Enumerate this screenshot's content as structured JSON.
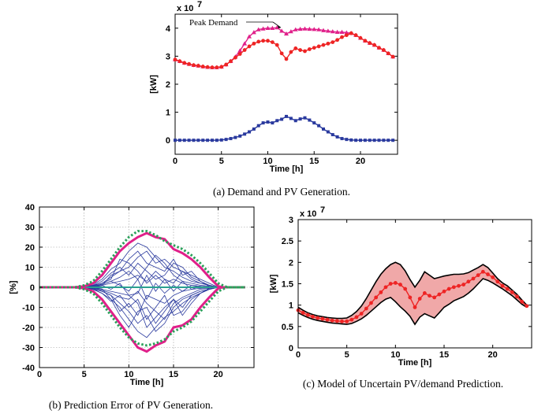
{
  "captions": {
    "a": "(a) Demand and PV Generation.",
    "b": "(b) Prediction Error of PV Generation.",
    "c": "(c) Model of Uncertain PV/demand Prediction."
  },
  "chart_data": [
    {
      "id": "a",
      "type": "line",
      "title": "",
      "xlabel": "Time [h]",
      "ylabel": "[kW]",
      "scale_label": "x 10",
      "scale_exp": "7",
      "xlim": [
        0,
        24
      ],
      "ylim": [
        -0.5,
        4.5
      ],
      "xticks": [
        0,
        5,
        10,
        15,
        20
      ],
      "yticks": [
        0,
        1,
        2,
        3,
        4
      ],
      "grid": false,
      "annotation": {
        "text": "Peak Demand",
        "x": 11.4,
        "y": 4.02
      },
      "x": [
        0,
        0.5,
        1,
        1.5,
        2,
        2.5,
        3,
        3.5,
        4,
        4.5,
        5,
        5.5,
        6,
        6.5,
        7,
        7.5,
        8,
        8.5,
        9,
        9.5,
        10,
        10.5,
        11,
        11.5,
        12,
        12.5,
        13,
        13.5,
        14,
        14.5,
        15,
        15.5,
        16,
        16.5,
        17,
        17.5,
        18,
        18.5,
        19,
        19.5,
        20,
        20.5,
        21,
        21.5,
        22,
        22.5,
        23,
        23.5
      ],
      "series": [
        {
          "color": "#e0208a",
          "marker": "triangle",
          "values": [
            2.88,
            2.82,
            2.76,
            2.72,
            2.68,
            2.66,
            2.63,
            2.61,
            2.6,
            2.6,
            2.62,
            2.7,
            2.82,
            2.98,
            3.2,
            3.45,
            3.7,
            3.85,
            3.95,
            3.98,
            4.0,
            4.0,
            4.02,
            3.9,
            3.8,
            3.88,
            3.95,
            3.97,
            3.98,
            3.97,
            3.96,
            3.95,
            3.92,
            3.9,
            3.88,
            3.86,
            3.86,
            3.84,
            3.82,
            3.75,
            3.65,
            3.55,
            3.47,
            3.4,
            3.3,
            3.22,
            3.1,
            2.98
          ]
        },
        {
          "color": "#ee2424",
          "marker": "circle",
          "values": [
            2.88,
            2.82,
            2.76,
            2.72,
            2.68,
            2.66,
            2.63,
            2.61,
            2.6,
            2.6,
            2.62,
            2.7,
            2.82,
            2.95,
            3.08,
            3.22,
            3.35,
            3.45,
            3.52,
            3.55,
            3.55,
            3.5,
            3.4,
            3.1,
            2.9,
            3.15,
            3.28,
            3.22,
            3.18,
            3.25,
            3.3,
            3.35,
            3.4,
            3.45,
            3.5,
            3.58,
            3.68,
            3.75,
            3.82,
            3.75,
            3.65,
            3.55,
            3.47,
            3.4,
            3.3,
            3.22,
            3.1,
            2.98
          ]
        },
        {
          "color": "#2a3a9e",
          "marker": "square",
          "values": [
            0,
            0,
            0,
            0,
            0,
            0,
            0,
            0,
            0,
            0,
            0.01,
            0.03,
            0.06,
            0.1,
            0.15,
            0.22,
            0.3,
            0.4,
            0.52,
            0.62,
            0.65,
            0.62,
            0.7,
            0.75,
            0.85,
            0.78,
            0.7,
            0.76,
            0.8,
            0.72,
            0.62,
            0.52,
            0.4,
            0.3,
            0.2,
            0.12,
            0.06,
            0.03,
            0.01,
            0,
            0,
            0,
            0,
            0,
            0,
            0,
            0,
            0
          ]
        }
      ]
    },
    {
      "id": "b",
      "type": "line",
      "title": "",
      "xlabel": "Time [h]",
      "ylabel": "[%]",
      "xlim": [
        0,
        24
      ],
      "ylim": [
        -40,
        40
      ],
      "xticks": [
        0,
        5,
        10,
        15,
        20
      ],
      "yticks": [
        -40,
        -30,
        -20,
        -10,
        0,
        10,
        20,
        30,
        40
      ],
      "grid": true,
      "envelope_upper": {
        "color": "#e0208a",
        "x": [
          0,
          4,
          5,
          6,
          7,
          8,
          9,
          10,
          11,
          12,
          13,
          14,
          15,
          16,
          17,
          18,
          19,
          20,
          20.5,
          23
        ],
        "values": [
          0,
          0,
          0.5,
          2,
          6,
          12,
          18,
          22,
          25,
          27,
          25,
          24,
          19,
          17,
          14,
          10,
          5,
          0.5,
          0,
          0
        ]
      },
      "envelope_lower": {
        "color": "#e0208a",
        "x": [
          0,
          4,
          5,
          6,
          7,
          8,
          9,
          10,
          11,
          12,
          13,
          14,
          15,
          16,
          17,
          18,
          19,
          20,
          20.5,
          23
        ],
        "values": [
          0,
          0,
          -0.5,
          -2,
          -6,
          -12,
          -18,
          -24,
          -30,
          -32,
          -29,
          -27,
          -20,
          -19,
          -16,
          -10,
          -5,
          -0.5,
          0,
          0
        ]
      },
      "bound_upper": {
        "color": "#2aa05a",
        "x": [
          0,
          4,
          5,
          6,
          7,
          8,
          9,
          10,
          11,
          12,
          13,
          14,
          15,
          16,
          17,
          18,
          19,
          20,
          21,
          23
        ],
        "values": [
          0,
          0,
          1,
          3,
          8,
          14,
          20,
          25,
          28,
          28,
          26,
          23,
          21,
          19,
          16,
          12,
          7,
          2,
          0,
          0
        ]
      },
      "bound_lower": {
        "color": "#2aa05a",
        "x": [
          0,
          4,
          5,
          6,
          7,
          8,
          9,
          10,
          11,
          12,
          13,
          14,
          15,
          16,
          17,
          18,
          19,
          20,
          21,
          23
        ],
        "values": [
          0,
          0,
          -1,
          -3,
          -8,
          -14,
          -20,
          -25,
          -28,
          -29,
          -28,
          -26,
          -22,
          -20,
          -17,
          -12,
          -7,
          -2,
          0,
          0
        ]
      },
      "error_curves": {
        "color": "#2a3a9e",
        "x": [
          0,
          4,
          5,
          6,
          7,
          8,
          9,
          10,
          11,
          12,
          13,
          14,
          15,
          16,
          17,
          18,
          19,
          20,
          21,
          23
        ],
        "curves": [
          [
            0,
            0,
            0.3,
            1.5,
            4,
            9,
            12,
            18,
            22,
            20,
            15,
            10,
            8,
            5,
            3,
            2,
            1,
            0,
            0,
            0
          ],
          [
            0,
            0,
            -0.3,
            -1,
            -3,
            -6,
            -10,
            -16,
            -22,
            -25,
            -20,
            -15,
            -12,
            -8,
            -5,
            -3,
            -1,
            0,
            0,
            0
          ],
          [
            0,
            0,
            0.2,
            1,
            2,
            5,
            8,
            10,
            15,
            18,
            12,
            14,
            10,
            8,
            6,
            4,
            2,
            0,
            0,
            0
          ],
          [
            0,
            0,
            -0.2,
            -1,
            -2,
            -4,
            -8,
            -12,
            -18,
            -14,
            -22,
            -18,
            -10,
            -6,
            -4,
            -2,
            -1,
            0,
            0,
            0
          ],
          [
            0,
            0,
            0.1,
            0.5,
            1.5,
            3,
            5,
            8,
            4,
            10,
            16,
            12,
            6,
            3,
            2,
            1,
            0.5,
            0,
            0,
            0
          ],
          [
            0,
            0,
            -0.1,
            -0.5,
            -1.5,
            -3,
            -5,
            -6,
            -2,
            -8,
            -12,
            -16,
            -8,
            -5,
            -3,
            -1,
            -0.5,
            0,
            0,
            0
          ],
          [
            0,
            0,
            0.3,
            1,
            3,
            7,
            10,
            6,
            12,
            8,
            4,
            6,
            12,
            10,
            5,
            3,
            1,
            0,
            0,
            0
          ],
          [
            0,
            0,
            -0.3,
            -1,
            -3,
            -7,
            -4,
            -10,
            -6,
            -16,
            -10,
            -4,
            -14,
            -12,
            -6,
            -3,
            -1,
            0,
            0,
            0
          ],
          [
            0,
            0,
            0.2,
            0.8,
            2,
            4,
            14,
            12,
            8,
            2,
            6,
            2,
            4,
            2,
            1,
            0.5,
            0.2,
            0,
            0,
            0
          ],
          [
            0,
            0,
            -0.2,
            -0.8,
            -2,
            -4,
            -12,
            -8,
            -14,
            -4,
            -6,
            -8,
            -4,
            -2,
            -1,
            -0.5,
            -0.2,
            0,
            0,
            0
          ],
          [
            0,
            0,
            0.1,
            0.4,
            1,
            2,
            3,
            4,
            6,
            3,
            8,
            4,
            2,
            8,
            4,
            2,
            1,
            0,
            0,
            0
          ],
          [
            0,
            0,
            -0.1,
            -0.4,
            -1,
            -2,
            -3,
            -4,
            -8,
            -20,
            -15,
            -10,
            -6,
            -10,
            -4,
            -2,
            -1,
            0,
            0,
            0
          ],
          [
            0,
            0,
            0,
            0.2,
            0.8,
            6,
            8,
            14,
            18,
            12,
            10,
            8,
            14,
            6,
            8,
            3,
            0.5,
            0,
            0,
            0
          ],
          [
            0,
            0,
            0,
            -0.2,
            -0.8,
            -6,
            -14,
            -20,
            -12,
            -10,
            -18,
            -12,
            -6,
            -14,
            -8,
            -3,
            -0.5,
            0,
            0,
            0
          ],
          [
            0,
            0,
            0.2,
            0.6,
            1.5,
            3,
            1,
            -2,
            4,
            -6,
            2,
            -3,
            1,
            -2,
            1,
            0,
            0,
            0,
            0,
            0
          ],
          [
            0,
            0,
            0.1,
            0.3,
            1,
            -1,
            2,
            -4,
            -3,
            6,
            -2,
            4,
            -2,
            3,
            -1,
            0.5,
            0,
            0,
            0,
            0
          ]
        ]
      }
    },
    {
      "id": "c",
      "type": "area",
      "title": "",
      "xlabel": "Time [h]",
      "ylabel": "[kW]",
      "scale_label": "x 10",
      "scale_exp": "7",
      "xlim": [
        0,
        24
      ],
      "ylim": [
        0,
        3
      ],
      "xticks": [
        0,
        5,
        10,
        15,
        20
      ],
      "yticks": [
        0,
        0.5,
        1,
        1.5,
        2,
        2.5,
        3
      ],
      "grid": false,
      "band_fill": "#f0a8a8",
      "x": [
        0,
        0.5,
        1,
        1.5,
        2,
        2.5,
        3,
        3.5,
        4,
        4.5,
        5,
        5.5,
        6,
        6.5,
        7,
        7.5,
        8,
        8.5,
        9,
        9.5,
        10,
        10.5,
        11,
        11.5,
        12,
        12.5,
        13,
        13.5,
        14,
        14.5,
        15,
        15.5,
        16,
        16.5,
        17,
        17.5,
        18,
        18.5,
        19,
        19.5,
        20,
        20.5,
        21,
        21.5,
        22,
        22.5,
        23,
        23.5
      ],
      "upper": [
        0.95,
        0.88,
        0.82,
        0.78,
        0.75,
        0.73,
        0.71,
        0.7,
        0.69,
        0.69,
        0.7,
        0.76,
        0.85,
        0.98,
        1.15,
        1.35,
        1.55,
        1.72,
        1.85,
        1.95,
        2.0,
        1.95,
        1.8,
        1.6,
        1.42,
        1.58,
        1.78,
        1.7,
        1.62,
        1.65,
        1.68,
        1.7,
        1.72,
        1.72,
        1.73,
        1.76,
        1.82,
        1.88,
        1.95,
        1.88,
        1.75,
        1.62,
        1.52,
        1.45,
        1.35,
        1.25,
        1.12,
        1.0
      ],
      "center": [
        0.88,
        0.82,
        0.77,
        0.73,
        0.7,
        0.68,
        0.66,
        0.64,
        0.63,
        0.62,
        0.62,
        0.66,
        0.72,
        0.8,
        0.92,
        1.05,
        1.18,
        1.3,
        1.42,
        1.5,
        1.52,
        1.48,
        1.38,
        1.18,
        0.95,
        1.15,
        1.28,
        1.22,
        1.18,
        1.25,
        1.32,
        1.38,
        1.42,
        1.45,
        1.48,
        1.55,
        1.62,
        1.7,
        1.78,
        1.72,
        1.65,
        1.55,
        1.45,
        1.38,
        1.3,
        1.2,
        1.08,
        0.98
      ],
      "lower": [
        0.82,
        0.76,
        0.71,
        0.67,
        0.64,
        0.62,
        0.6,
        0.58,
        0.57,
        0.56,
        0.55,
        0.57,
        0.62,
        0.68,
        0.76,
        0.86,
        0.96,
        1.06,
        1.14,
        1.18,
        1.08,
        0.96,
        0.86,
        0.74,
        0.55,
        0.72,
        0.8,
        0.75,
        0.7,
        0.82,
        0.95,
        1.02,
        1.1,
        1.15,
        1.2,
        1.28,
        1.38,
        1.5,
        1.62,
        1.58,
        1.52,
        1.45,
        1.38,
        1.3,
        1.22,
        1.12,
        1.02,
        0.95
      ],
      "line_color": "#ee2424",
      "band_color": "#000000"
    }
  ]
}
